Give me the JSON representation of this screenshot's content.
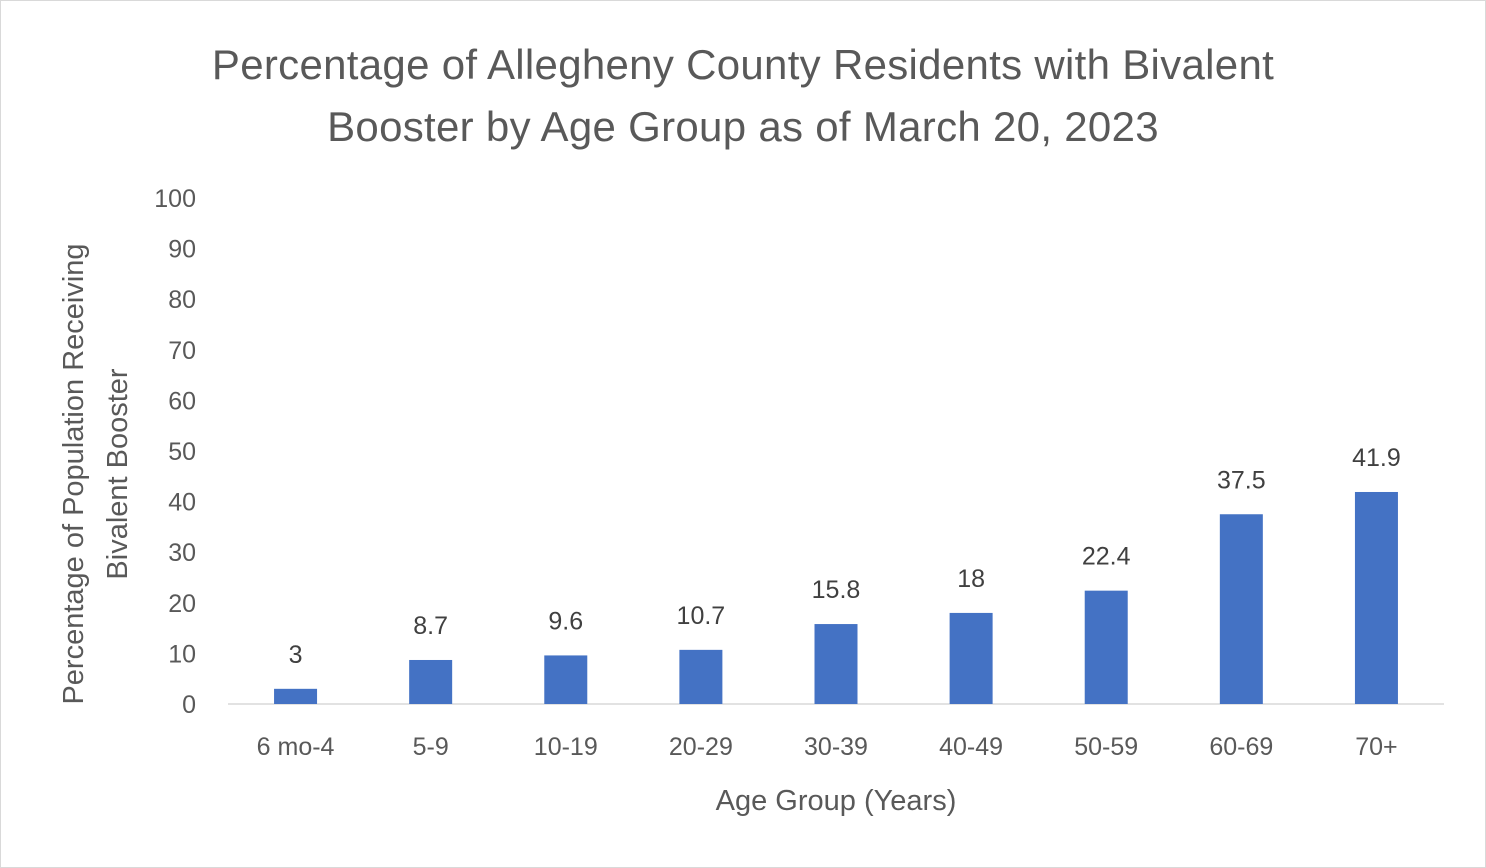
{
  "chart_data": {
    "type": "bar",
    "title_lines": [
      "Percentage of Allegheny County Residents with Bivalent",
      "Booster by Age Group as of March 20, 2023"
    ],
    "xlabel": "Age Group (Years)",
    "ylabel_lines": [
      "Percentage of Population Receiving",
      "Bivalent Booster"
    ],
    "categories": [
      "6 mo-4",
      "5-9",
      "10-19",
      "20-29",
      "30-39",
      "40-49",
      "50-59",
      "60-69",
      "70+"
    ],
    "values": [
      3,
      8.7,
      9.6,
      10.7,
      15.8,
      18,
      22.4,
      37.5,
      41.9
    ],
    "data_labels": [
      "3",
      "8.7",
      "9.6",
      "10.7",
      "15.8",
      "18",
      "22.4",
      "37.5",
      "41.9"
    ],
    "ylim": [
      0,
      100
    ],
    "yticks": [
      "0",
      "10",
      "20",
      "30",
      "40",
      "50",
      "60",
      "70",
      "80",
      "90",
      "100"
    ],
    "grid": false,
    "legend": "none",
    "bar_color": "#4472c4",
    "text_color": "#595959",
    "axis_color": "#d9d9d9"
  }
}
